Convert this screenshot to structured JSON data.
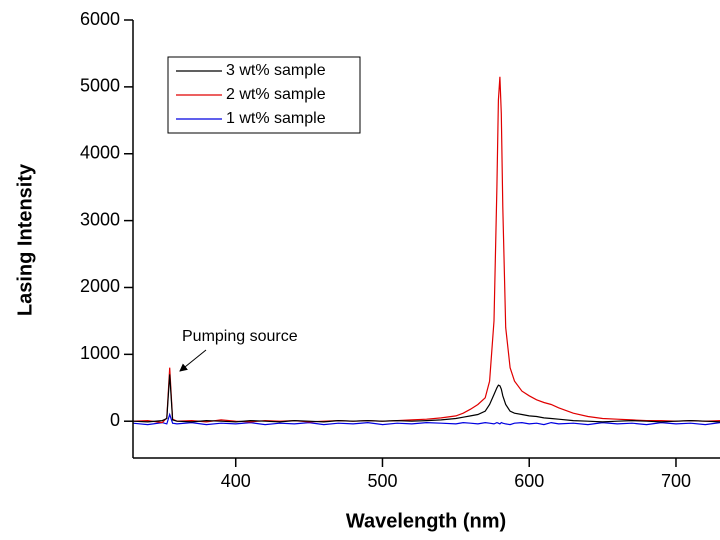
{
  "chart_data": {
    "type": "line",
    "x_label": "Wavelength (nm)",
    "y_label": "Lasing Intensity",
    "annotation": "Pumping source",
    "legend": "upper left",
    "xlim": [
      330,
      730
    ],
    "xticks": [
      400,
      500,
      600,
      700
    ],
    "ylim": [
      -550,
      6000
    ],
    "yticks": [
      0,
      1000,
      2000,
      3000,
      4000,
      5000,
      6000
    ],
    "x": [
      330,
      340,
      350,
      353,
      355,
      357,
      360,
      370,
      380,
      390,
      400,
      410,
      420,
      430,
      440,
      450,
      460,
      470,
      480,
      490,
      500,
      510,
      520,
      530,
      540,
      550,
      555,
      560,
      565,
      570,
      573,
      576,
      578,
      579,
      580,
      581,
      582,
      584,
      587,
      590,
      595,
      600,
      605,
      610,
      615,
      620,
      630,
      640,
      650,
      660,
      670,
      680,
      690,
      700,
      710,
      720,
      730
    ],
    "series": [
      {
        "name": "3 wt% sample",
        "color": "#000000",
        "values": [
          0,
          -10,
          10,
          40,
          700,
          20,
          0,
          -10,
          10,
          0,
          -10,
          10,
          0,
          -10,
          10,
          0,
          -10,
          10,
          0,
          10,
          0,
          10,
          0,
          10,
          20,
          40,
          60,
          80,
          100,
          150,
          250,
          400,
          500,
          540,
          530,
          480,
          380,
          250,
          150,
          120,
          100,
          80,
          70,
          50,
          40,
          30,
          10,
          0,
          -10,
          0,
          10,
          0,
          -10,
          0,
          10,
          0,
          -10
        ]
      },
      {
        "name": "2 wt% sample",
        "color": "#e00000",
        "values": [
          0,
          10,
          -20,
          50,
          800,
          30,
          0,
          10,
          -10,
          20,
          0,
          -10,
          10,
          0,
          10,
          -10,
          0,
          10,
          0,
          10,
          0,
          10,
          20,
          30,
          50,
          80,
          120,
          180,
          250,
          350,
          600,
          1500,
          3500,
          4800,
          5150,
          4600,
          3200,
          1400,
          800,
          600,
          450,
          380,
          320,
          280,
          250,
          200,
          120,
          70,
          40,
          30,
          20,
          10,
          10,
          0,
          10,
          0,
          10
        ]
      },
      {
        "name": "1 wt% sample",
        "color": "#0000e0",
        "values": [
          -30,
          -50,
          -20,
          -40,
          100,
          -30,
          -40,
          -20,
          -50,
          -30,
          -40,
          -20,
          -50,
          -30,
          -40,
          -20,
          -50,
          -30,
          -40,
          -20,
          -50,
          -30,
          -40,
          -20,
          -30,
          -40,
          -20,
          -30,
          -40,
          -20,
          -30,
          -40,
          -20,
          -30,
          -40,
          -20,
          -30,
          -40,
          -50,
          -30,
          -20,
          -40,
          -30,
          -50,
          -20,
          -40,
          -30,
          -50,
          -20,
          -40,
          -30,
          -50,
          -20,
          -40,
          -30,
          -50,
          -20
        ]
      }
    ]
  }
}
